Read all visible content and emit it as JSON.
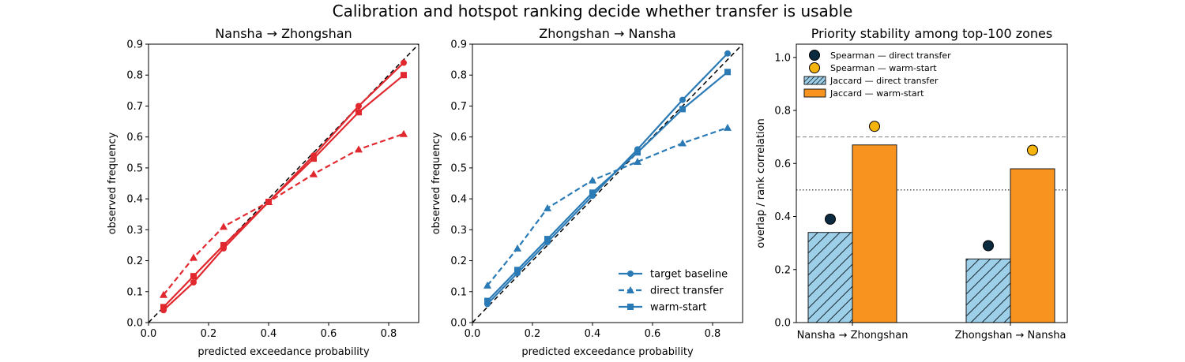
{
  "figure": {
    "title": "Calibration and hotspot ranking decide whether transfer is usable"
  },
  "colors": {
    "red": "#e0282e",
    "blue": "#2a7ab5",
    "navy": "#0b2a40",
    "gold": "#f5b40b",
    "lightblue": "#9ecfe8",
    "orange": "#f7931e"
  },
  "chart_data": [
    {
      "type": "line",
      "title": "Nansha → Zhongshan",
      "xlabel": "predicted exceedance probability",
      "ylabel": "observed frequency",
      "xlim": [
        0,
        0.9
      ],
      "ylim": [
        0,
        0.9
      ],
      "xticks": [
        "0.0",
        "0.2",
        "0.4",
        "0.6",
        "0.8"
      ],
      "yticks": [
        "0.0",
        "0.1",
        "0.2",
        "0.3",
        "0.4",
        "0.5",
        "0.6",
        "0.7",
        "0.8",
        "0.9"
      ],
      "x": [
        0.05,
        0.15,
        0.25,
        0.4,
        0.55,
        0.7,
        0.85
      ],
      "series": [
        {
          "values": [
            0.04,
            0.13,
            0.24,
            0.39,
            0.54,
            0.7,
            0.84
          ],
          "marker": "circle",
          "style": "solid"
        },
        {
          "values": [
            0.09,
            0.21,
            0.31,
            0.39,
            0.48,
            0.56,
            0.61
          ],
          "marker": "triangle",
          "style": "dashed"
        },
        {
          "values": [
            0.05,
            0.15,
            0.25,
            0.39,
            0.53,
            0.68,
            0.8
          ],
          "marker": "square",
          "style": "solid"
        }
      ],
      "diagonal": true,
      "grid": false
    },
    {
      "type": "line",
      "title": "Zhongshan → Nansha",
      "xlabel": "predicted exceedance probability",
      "ylabel": "observed frequency",
      "xlim": [
        0,
        0.9
      ],
      "ylim": [
        0,
        0.9
      ],
      "xticks": [
        "0.0",
        "0.2",
        "0.4",
        "0.6",
        "0.8"
      ],
      "yticks": [
        "0.0",
        "0.1",
        "0.2",
        "0.3",
        "0.4",
        "0.5",
        "0.6",
        "0.7",
        "0.8",
        "0.9"
      ],
      "x": [
        0.05,
        0.15,
        0.25,
        0.4,
        0.55,
        0.7,
        0.85
      ],
      "series": [
        {
          "name": "target baseline",
          "values": [
            0.06,
            0.16,
            0.26,
            0.41,
            0.56,
            0.72,
            0.87
          ],
          "marker": "circle",
          "style": "solid"
        },
        {
          "name": "direct transfer",
          "values": [
            0.12,
            0.24,
            0.37,
            0.46,
            0.52,
            0.58,
            0.63
          ],
          "marker": "triangle",
          "style": "dashed"
        },
        {
          "name": "warm-start",
          "values": [
            0.07,
            0.17,
            0.27,
            0.42,
            0.55,
            0.69,
            0.81
          ],
          "marker": "square",
          "style": "solid"
        }
      ],
      "legend": "lower-right",
      "diagonal": true,
      "grid": false
    },
    {
      "type": "bar",
      "title": "Priority stability among top-100 zones",
      "ylabel": "overlap / rank correlation",
      "categories": [
        "Nansha → Zhongshan",
        "Zhongshan → Nansha"
      ],
      "ylim": [
        0,
        1.05
      ],
      "yticks": [
        "0.0",
        "0.2",
        "0.4",
        "0.6",
        "0.8",
        "1.0"
      ],
      "series": [
        {
          "name": "Jaccard — direct transfer",
          "kind": "bar",
          "values": [
            0.34,
            0.24
          ],
          "hatch": true
        },
        {
          "name": "Jaccard — warm-start",
          "kind": "bar",
          "values": [
            0.67,
            0.58
          ]
        },
        {
          "name": "Spearman — direct transfer",
          "kind": "point",
          "values": [
            0.39,
            0.29
          ]
        },
        {
          "name": "Spearman — warm-start",
          "kind": "point",
          "values": [
            0.74,
            0.65
          ]
        }
      ],
      "reference_lines": [
        {
          "value": 0.7,
          "style": "dashed"
        },
        {
          "value": 0.5,
          "style": "dotted"
        }
      ],
      "legend": "top-left",
      "grid": false
    }
  ]
}
